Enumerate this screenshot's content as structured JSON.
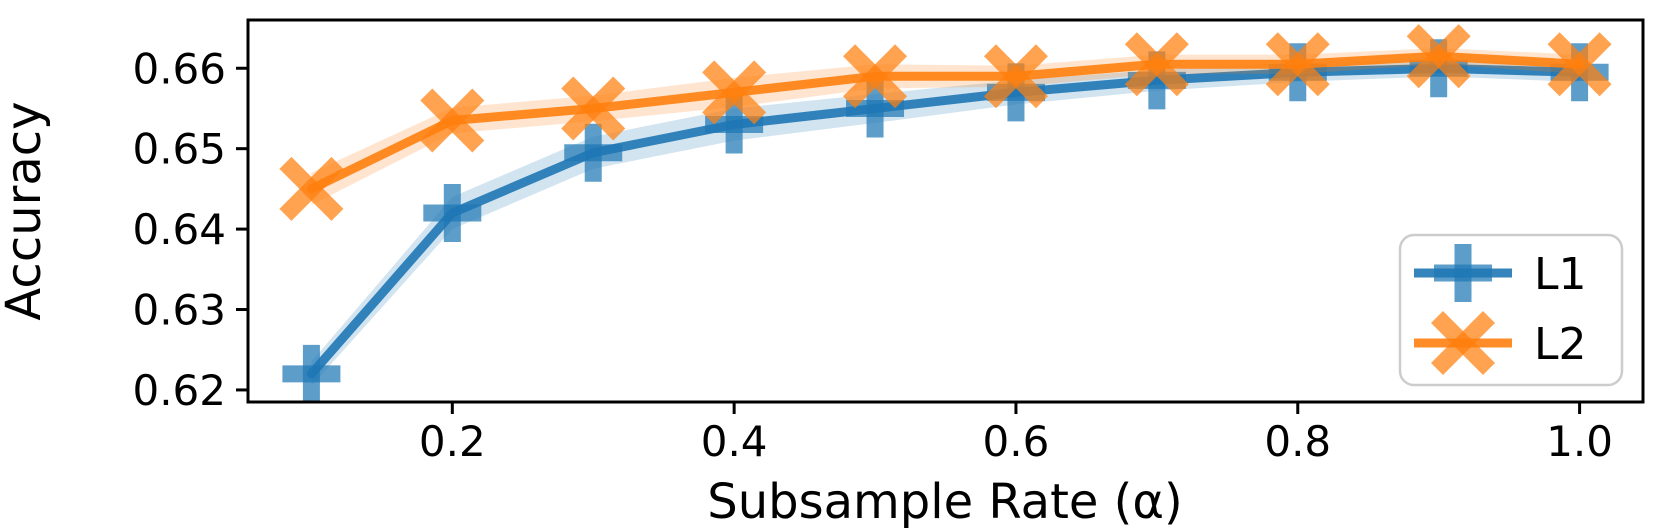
{
  "figure": {
    "background_color": "#ffffff",
    "text_color": "#000000",
    "spine_color": "#000000"
  },
  "chart_data": {
    "type": "line",
    "title": "",
    "xlabel": "Subsample Rate (α)",
    "ylabel": "Accuracy",
    "x": [
      0.1,
      0.2,
      0.3,
      0.4,
      0.5,
      0.6,
      0.7,
      0.8,
      0.9,
      1.0
    ],
    "xlim": [
      0.055,
      1.045
    ],
    "ylim": [
      0.6185,
      0.666
    ],
    "xticks": [
      0.2,
      0.4,
      0.6,
      0.8,
      1.0
    ],
    "xtick_labels": [
      "0.2",
      "0.4",
      "0.6",
      "0.8",
      "1.0"
    ],
    "yticks": [
      0.62,
      0.63,
      0.64,
      0.65,
      0.66
    ],
    "ytick_labels": [
      "0.62",
      "0.63",
      "0.64",
      "0.65",
      "0.66"
    ],
    "grid": false,
    "series": [
      {
        "name": "L1",
        "color": "#1f77b4",
        "marker": "plus",
        "values": [
          0.622,
          0.642,
          0.6495,
          0.653,
          0.655,
          0.657,
          0.6585,
          0.6595,
          0.66,
          0.6595
        ],
        "band_halfwidth": [
          0.0015,
          0.002,
          0.002,
          0.002,
          0.0018,
          0.0015,
          0.0013,
          0.0012,
          0.001,
          0.0012
        ]
      },
      {
        "name": "L2",
        "color": "#ff7f0e",
        "marker": "x",
        "values": [
          0.645,
          0.6535,
          0.655,
          0.657,
          0.659,
          0.659,
          0.6605,
          0.6605,
          0.6615,
          0.6605
        ],
        "band_halfwidth": [
          0.002,
          0.0016,
          0.0016,
          0.0018,
          0.0015,
          0.0013,
          0.0012,
          0.0012,
          0.001,
          0.0012
        ]
      }
    ],
    "legend": {
      "location": "lower-right",
      "border_color": "#cccccc",
      "entries": [
        {
          "label": "L1",
          "marker": "plus",
          "color": "#1f77b4"
        },
        {
          "label": "L2",
          "marker": "x",
          "color": "#ff7f0e"
        }
      ]
    }
  }
}
